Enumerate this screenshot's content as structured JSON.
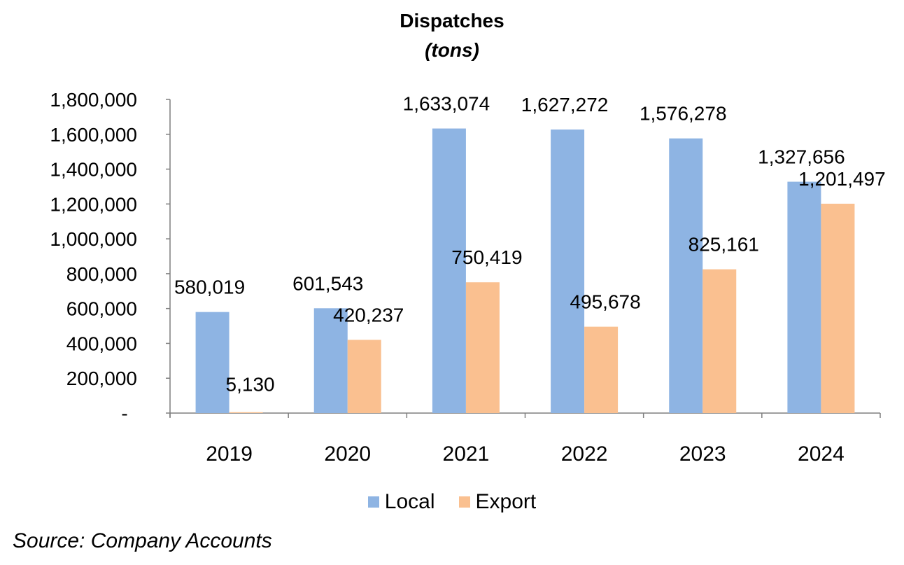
{
  "chart_data": {
    "type": "bar",
    "title": "Dispatches",
    "subtitle": "(tons)",
    "categories": [
      "2019",
      "2020",
      "2021",
      "2022",
      "2023",
      "2024"
    ],
    "series": [
      {
        "name": "Local",
        "color": "#8eb4e3",
        "values": [
          580019,
          601543,
          1633074,
          1627272,
          1576278,
          1327656
        ],
        "labels": [
          "580,019",
          "601,543",
          "1,633,074",
          "1,627,272",
          "1,576,278",
          "1,327,656"
        ]
      },
      {
        "name": "Export",
        "color": "#fac090",
        "values": [
          5130,
          420237,
          750419,
          495678,
          825161,
          1201497
        ],
        "labels": [
          "5,130",
          "420,237",
          "750,419",
          "495,678",
          "825,161",
          "1,201,497"
        ]
      }
    ],
    "ylim": [
      0,
      1800000
    ],
    "yticks": [
      0,
      200000,
      400000,
      600000,
      800000,
      1000000,
      1200000,
      1400000,
      1600000,
      1800000
    ],
    "ytick_labels": [
      "-",
      "200,000",
      "400,000",
      "600,000",
      "800,000",
      "1,000,000",
      "1,200,000",
      "1,400,000",
      "1,600,000",
      "1,800,000"
    ],
    "grid": false,
    "legend_position": "bottom"
  },
  "source": "Source: Company Accounts"
}
